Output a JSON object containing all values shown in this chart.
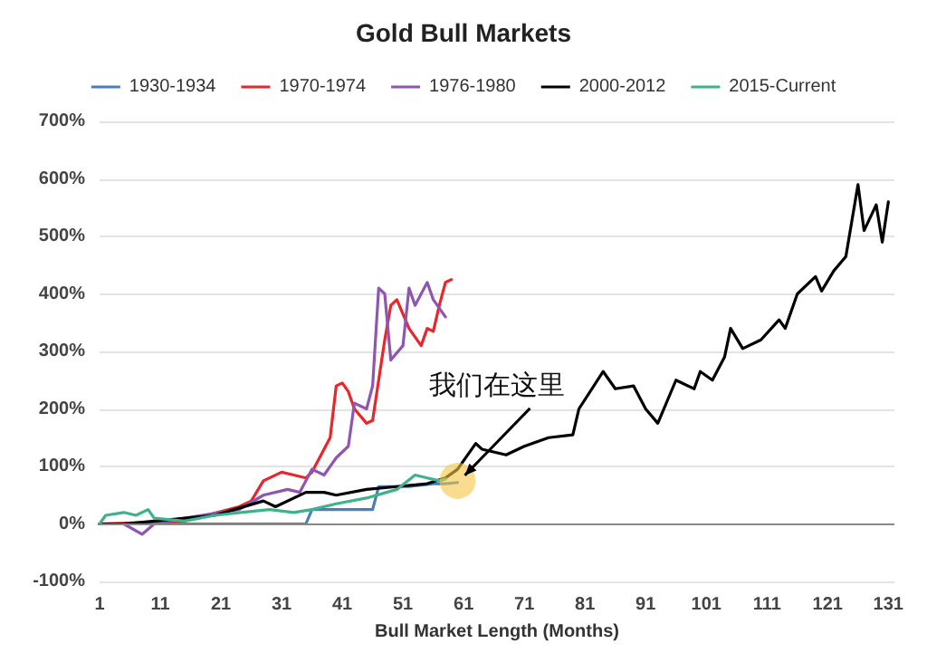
{
  "chart_data": {
    "type": "line",
    "title": "Gold Bull Markets",
    "xlabel": "Bull Market Length (Months)",
    "xlim": [
      1,
      132
    ],
    "xticks": [
      1,
      11,
      21,
      31,
      41,
      51,
      61,
      71,
      81,
      91,
      101,
      111,
      121,
      131
    ],
    "ylim": [
      -100,
      700
    ],
    "yticks": [
      {
        "value": -100,
        "label": "-100%"
      },
      {
        "value": 0,
        "label": "0%"
      },
      {
        "value": 100,
        "label": "100%"
      },
      {
        "value": 200,
        "label": "200%"
      },
      {
        "value": 300,
        "label": "300%"
      },
      {
        "value": 400,
        "label": "400%"
      },
      {
        "value": 500,
        "label": "500%"
      },
      {
        "value": 600,
        "label": "600%"
      },
      {
        "value": 700,
        "label": "700%"
      }
    ],
    "grid": "y",
    "legend": "top",
    "marker": "none",
    "line_style": "solid",
    "annotations": [
      {
        "text": "我们在这里",
        "x": 60,
        "y": 75
      }
    ],
    "series": [
      {
        "name": "1930-1934",
        "color": "#4a7ebb",
        "x": [
          1,
          35,
          36,
          46,
          47,
          52,
          56,
          58,
          60
        ],
        "values": [
          0,
          0,
          25,
          25,
          65,
          65,
          70,
          70,
          72
        ]
      },
      {
        "name": "1970-1974",
        "color": "#e8262c",
        "x": [
          1,
          15,
          24,
          26,
          28,
          31,
          33,
          35,
          36,
          38,
          39,
          40,
          41,
          42,
          43,
          45,
          46,
          48,
          49,
          50,
          52,
          54,
          55,
          56,
          57,
          58,
          59
        ],
        "values": [
          0,
          5,
          30,
          40,
          75,
          90,
          85,
          80,
          90,
          130,
          150,
          240,
          245,
          230,
          200,
          175,
          180,
          320,
          380,
          390,
          340,
          310,
          340,
          335,
          380,
          420,
          425
        ]
      },
      {
        "name": "1976-1980",
        "color": "#8e56b0",
        "x": [
          1,
          5,
          8,
          10,
          15,
          24,
          28,
          32,
          34,
          36,
          38,
          40,
          42,
          43,
          45,
          46,
          47,
          48,
          49,
          51,
          52,
          53,
          55,
          56,
          58
        ],
        "values": [
          0,
          0,
          -18,
          0,
          10,
          25,
          50,
          60,
          55,
          95,
          85,
          115,
          135,
          210,
          200,
          240,
          410,
          400,
          285,
          310,
          410,
          380,
          420,
          390,
          360
        ]
      },
      {
        "name": "2000-2012",
        "color": "#000000",
        "x": [
          1,
          5,
          10,
          20,
          28,
          30,
          35,
          38,
          40,
          45,
          50,
          55,
          58,
          60,
          63,
          64,
          68,
          71,
          75,
          79,
          80,
          84,
          86,
          89,
          91,
          93,
          96,
          99,
          100,
          102,
          104,
          105,
          107,
          110,
          113,
          114,
          116,
          119,
          120,
          122,
          124,
          126,
          127,
          129,
          130,
          131
        ],
        "values": [
          0,
          0,
          5,
          15,
          40,
          30,
          55,
          55,
          50,
          60,
          65,
          70,
          80,
          95,
          140,
          130,
          120,
          135,
          150,
          155,
          200,
          265,
          235,
          240,
          200,
          175,
          250,
          235,
          265,
          250,
          290,
          340,
          305,
          320,
          355,
          340,
          400,
          430,
          405,
          440,
          465,
          590,
          510,
          555,
          490,
          560
        ]
      },
      {
        "name": "2015-Current",
        "color": "#3cb38a",
        "x": [
          1,
          2,
          5,
          7,
          9,
          10,
          15,
          20,
          29,
          33,
          36,
          40,
          45,
          50,
          53,
          55,
          57,
          58
        ],
        "values": [
          0,
          15,
          20,
          15,
          25,
          10,
          5,
          15,
          25,
          20,
          25,
          35,
          45,
          60,
          85,
          80,
          75,
          78
        ]
      }
    ]
  }
}
